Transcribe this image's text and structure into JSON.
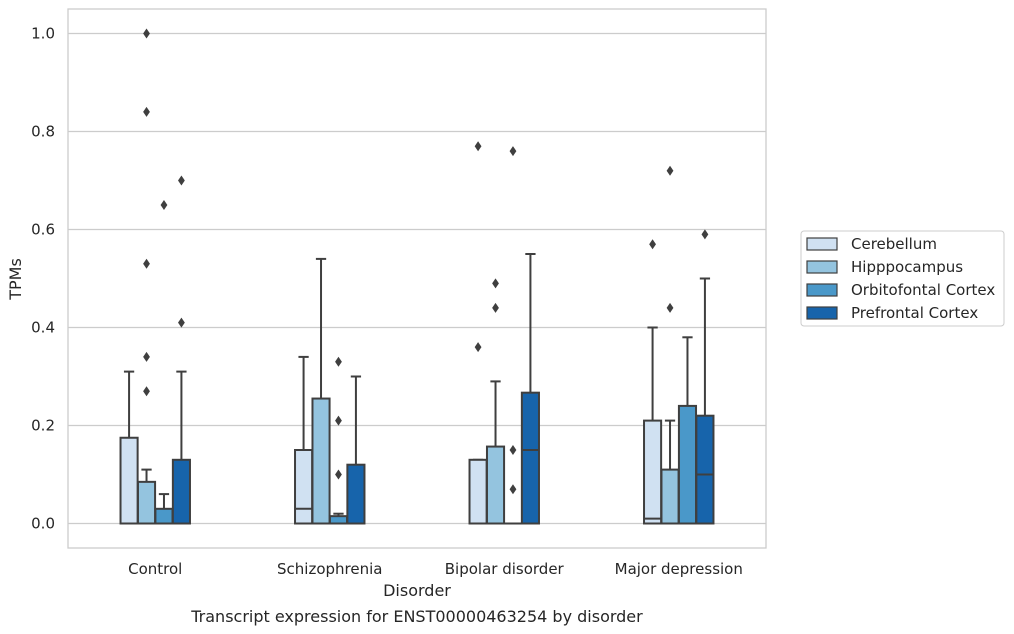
{
  "chart_data": {
    "type": "box",
    "caption": "Transcript expression for ENST00000463254 by disorder",
    "xlabel": "Disorder",
    "ylabel": "TPMs",
    "ylim": [
      -0.05,
      1.05
    ],
    "yticks": [
      0.0,
      0.2,
      0.4,
      0.6,
      0.8,
      1.0
    ],
    "ytick_labels": [
      "0.0",
      "0.2",
      "0.4",
      "0.6",
      "0.8",
      "1.0"
    ],
    "grid": "horizontal",
    "legend_position": "right",
    "categories": [
      "Control",
      "Schizophrenia",
      "Bipolar disorder",
      "Major depression"
    ],
    "series": [
      {
        "name": "Cerebellum",
        "color": "#d0e1f2",
        "boxes": [
          {
            "whislo": 0.0,
            "q1": 0.0,
            "med": 0.0,
            "q3": 0.175,
            "whishi": 0.31,
            "fliers": []
          },
          {
            "whislo": 0.0,
            "q1": 0.0,
            "med": 0.03,
            "q3": 0.15,
            "whishi": 0.34,
            "fliers": []
          },
          {
            "whislo": 0.0,
            "q1": 0.0,
            "med": 0.0,
            "q3": 0.13,
            "whishi": 0.13,
            "fliers": [
              0.36,
              0.77
            ]
          },
          {
            "whislo": 0.0,
            "q1": 0.0,
            "med": 0.01,
            "q3": 0.21,
            "whishi": 0.4,
            "fliers": [
              0.57
            ]
          }
        ]
      },
      {
        "name": "Hipppocampus",
        "color": "#94c4df",
        "boxes": [
          {
            "whislo": 0.0,
            "q1": 0.0,
            "med": 0.0,
            "q3": 0.085,
            "whishi": 0.11,
            "fliers": [
              0.27,
              0.34,
              0.53,
              0.84,
              1.0
            ]
          },
          {
            "whislo": 0.0,
            "q1": 0.0,
            "med": 0.0,
            "q3": 0.255,
            "whishi": 0.54,
            "fliers": []
          },
          {
            "whislo": 0.0,
            "q1": 0.0,
            "med": 0.0,
            "q3": 0.157,
            "whishi": 0.29,
            "fliers": [
              0.44,
              0.49
            ]
          },
          {
            "whislo": 0.0,
            "q1": 0.0,
            "med": 0.0,
            "q3": 0.11,
            "whishi": 0.21,
            "fliers": [
              0.44,
              0.72
            ]
          }
        ]
      },
      {
        "name": "Orbitofontal Cortex",
        "color": "#4a98c9",
        "boxes": [
          {
            "whislo": 0.0,
            "q1": 0.0,
            "med": 0.0,
            "q3": 0.03,
            "whishi": 0.06,
            "fliers": [
              0.65
            ]
          },
          {
            "whislo": 0.0,
            "q1": 0.0,
            "med": 0.0,
            "q3": 0.015,
            "whishi": 0.02,
            "fliers": [
              0.1,
              0.21,
              0.33
            ]
          },
          {
            "whislo": 0.0,
            "q1": 0.0,
            "med": 0.0,
            "q3": 0.0,
            "whishi": 0.0,
            "fliers": [
              0.07,
              0.15,
              0.76
            ]
          },
          {
            "whislo": 0.0,
            "q1": 0.0,
            "med": 0.0,
            "q3": 0.24,
            "whishi": 0.38,
            "fliers": []
          }
        ]
      },
      {
        "name": "Prefrontal Cortex",
        "color": "#1764ab",
        "boxes": [
          {
            "whislo": 0.0,
            "q1": 0.0,
            "med": 0.0,
            "q3": 0.13,
            "whishi": 0.31,
            "fliers": [
              0.41,
              0.7
            ]
          },
          {
            "whislo": 0.0,
            "q1": 0.0,
            "med": 0.0,
            "q3": 0.12,
            "whishi": 0.3,
            "fliers": []
          },
          {
            "whislo": 0.0,
            "q1": 0.0,
            "med": 0.15,
            "q3": 0.267,
            "whishi": 0.55,
            "fliers": []
          },
          {
            "whislo": 0.0,
            "q1": 0.0,
            "med": 0.1,
            "q3": 0.22,
            "whishi": 0.5,
            "fliers": [
              0.59
            ]
          }
        ]
      }
    ]
  }
}
